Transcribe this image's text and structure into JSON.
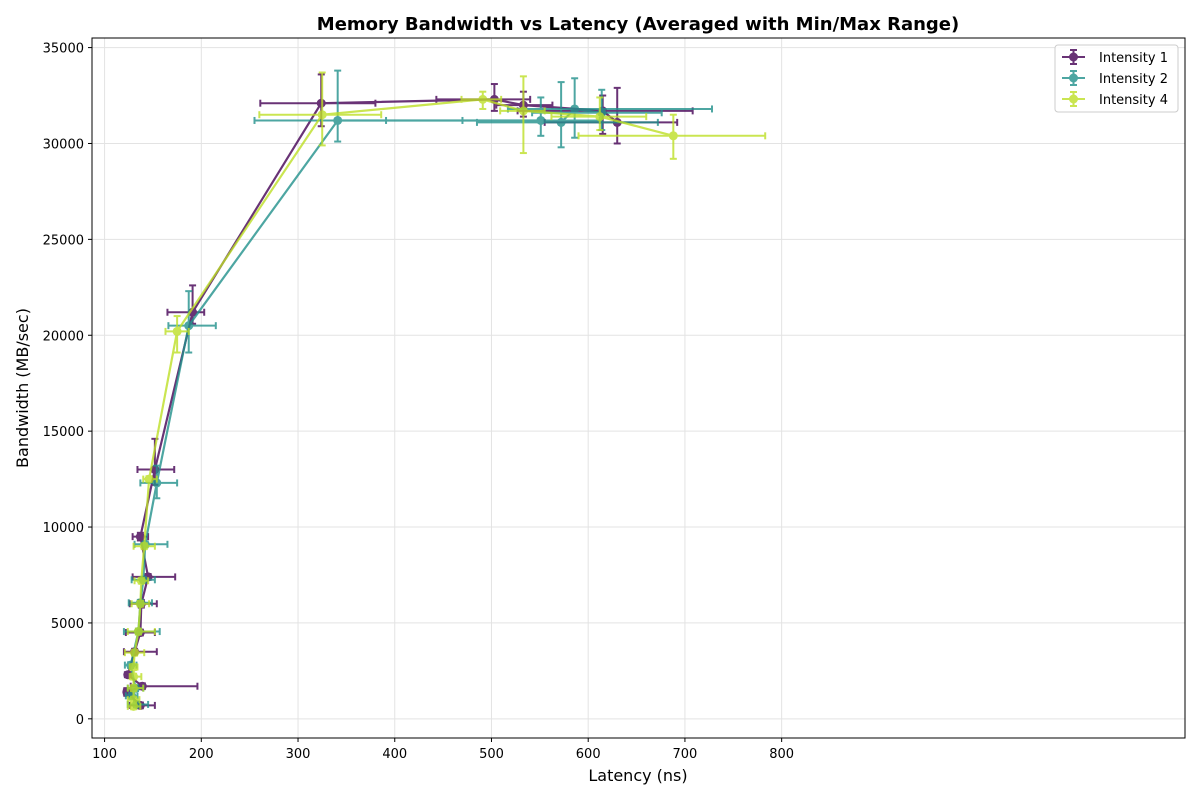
{
  "chart_data": {
    "type": "scatter",
    "title": "Memory Bandwidth vs Latency (Averaged with Min/Max Range)",
    "xlabel": "Latency (ns)",
    "ylabel": "Bandwidth (MB/sec)",
    "xlim": [
      87,
      1217
    ],
    "ylim": [
      -1000,
      35500
    ],
    "xticks": [
      100,
      200,
      300,
      400,
      500,
      600,
      700,
      800
    ],
    "yticks": [
      0,
      5000,
      10000,
      15000,
      20000,
      25000,
      30000,
      35000
    ],
    "grid": true,
    "legend_position": "top-right",
    "error_bars": "min/max range in both x and y",
    "series": [
      {
        "name": "Intensity 1",
        "color": "#440154",
        "points": [
          {
            "x": 137,
            "y": 700,
            "xmin": 126,
            "xmax": 152,
            "ymin": 550,
            "ymax": 850
          },
          {
            "x": 123,
            "y": 1400,
            "xmin": 120,
            "xmax": 128,
            "ymin": 1200,
            "ymax": 1600
          },
          {
            "x": 139,
            "y": 1700,
            "xmin": 127,
            "xmax": 196,
            "ymin": 1550,
            "ymax": 1850
          },
          {
            "x": 124,
            "y": 2300,
            "xmin": 121,
            "xmax": 127,
            "ymin": 2200,
            "ymax": 2400
          },
          {
            "x": 131,
            "y": 3500,
            "xmin": 120,
            "xmax": 154,
            "ymin": 3350,
            "ymax": 3650
          },
          {
            "x": 137,
            "y": 4500,
            "xmin": 122,
            "xmax": 152,
            "ymin": 4350,
            "ymax": 4650
          },
          {
            "x": 138,
            "y": 6000,
            "xmin": 126,
            "xmax": 154,
            "ymin": 5800,
            "ymax": 6200
          },
          {
            "x": 145,
            "y": 7400,
            "xmin": 129,
            "xmax": 173,
            "ymin": 7250,
            "ymax": 7550
          },
          {
            "x": 137,
            "y": 9500,
            "xmin": 129,
            "xmax": 145,
            "ymin": 9300,
            "ymax": 9700
          },
          {
            "x": 152,
            "y": 13000,
            "xmin": 134,
            "xmax": 172,
            "ymin": 12200,
            "ymax": 14600
          },
          {
            "x": 191,
            "y": 21200,
            "xmin": 165,
            "xmax": 203,
            "ymin": 20600,
            "ymax": 22600
          },
          {
            "x": 324,
            "y": 32100,
            "xmin": 261,
            "xmax": 380,
            "ymin": 30900,
            "ymax": 33600
          },
          {
            "x": 503,
            "y": 32300,
            "xmin": 443,
            "xmax": 540,
            "ymin": 31700,
            "ymax": 33100
          },
          {
            "x": 533,
            "y": 32000,
            "xmin": 505,
            "xmax": 563,
            "ymin": 31400,
            "ymax": 32700
          },
          {
            "x": 615,
            "y": 31700,
            "xmin": 527,
            "xmax": 708,
            "ymin": 30500,
            "ymax": 32500
          },
          {
            "x": 630,
            "y": 31100,
            "xmin": 555,
            "xmax": 692,
            "ymin": 30000,
            "ymax": 32900
          }
        ]
      },
      {
        "name": "Intensity 2",
        "color": "#21918c",
        "points": [
          {
            "x": 133,
            "y": 750,
            "xmin": 124,
            "xmax": 145,
            "ymin": 600,
            "ymax": 900
          },
          {
            "x": 128,
            "y": 1200,
            "xmin": 122,
            "xmax": 134,
            "ymin": 1050,
            "ymax": 1350
          },
          {
            "x": 132,
            "y": 1600,
            "xmin": 124,
            "xmax": 140,
            "ymin": 1450,
            "ymax": 1750
          },
          {
            "x": 127,
            "y": 2800,
            "xmin": 121,
            "xmax": 133,
            "ymin": 2650,
            "ymax": 2950
          },
          {
            "x": 135,
            "y": 4550,
            "xmin": 120,
            "xmax": 157,
            "ymin": 4400,
            "ymax": 4700
          },
          {
            "x": 137,
            "y": 6050,
            "xmin": 125,
            "xmax": 149,
            "ymin": 5900,
            "ymax": 6200
          },
          {
            "x": 140,
            "y": 7250,
            "xmin": 128,
            "xmax": 152,
            "ymin": 7100,
            "ymax": 7400
          },
          {
            "x": 142,
            "y": 9100,
            "xmin": 131,
            "xmax": 165,
            "ymin": 8950,
            "ymax": 9250
          },
          {
            "x": 154,
            "y": 12300,
            "xmin": 137,
            "xmax": 175,
            "ymin": 11500,
            "ymax": 13200
          },
          {
            "x": 187,
            "y": 20500,
            "xmin": 166,
            "xmax": 215,
            "ymin": 19100,
            "ymax": 22300
          },
          {
            "x": 341,
            "y": 31200,
            "xmin": 255,
            "xmax": 391,
            "ymin": 30100,
            "ymax": 33800
          },
          {
            "x": 551,
            "y": 31200,
            "xmin": 470,
            "xmax": 612,
            "ymin": 30400,
            "ymax": 32400
          },
          {
            "x": 572,
            "y": 31100,
            "xmin": 485,
            "xmax": 672,
            "ymin": 29800,
            "ymax": 33200
          },
          {
            "x": 586,
            "y": 31800,
            "xmin": 517,
            "xmax": 728,
            "ymin": 30300,
            "ymax": 33400
          },
          {
            "x": 614,
            "y": 31600,
            "xmin": 542,
            "xmax": 676,
            "ymin": 30700,
            "ymax": 32800
          }
        ]
      },
      {
        "name": "Intensity 4",
        "color": "#bddf26",
        "points": [
          {
            "x": 130,
            "y": 650,
            "xmin": 124,
            "xmax": 137,
            "ymin": 500,
            "ymax": 800
          },
          {
            "x": 130,
            "y": 1000,
            "xmin": 124,
            "xmax": 136,
            "ymin": 850,
            "ymax": 1150
          },
          {
            "x": 130,
            "y": 1600,
            "xmin": 124,
            "xmax": 140,
            "ymin": 1450,
            "ymax": 1750
          },
          {
            "x": 130,
            "y": 2200,
            "xmin": 126,
            "xmax": 138,
            "ymin": 2050,
            "ymax": 2350
          },
          {
            "x": 130,
            "y": 2700,
            "xmin": 126,
            "xmax": 134,
            "ymin": 2550,
            "ymax": 2850
          },
          {
            "x": 131,
            "y": 3450,
            "xmin": 121,
            "xmax": 141,
            "ymin": 3300,
            "ymax": 3600
          },
          {
            "x": 135,
            "y": 4550,
            "xmin": 124,
            "xmax": 152,
            "ymin": 4400,
            "ymax": 4700
          },
          {
            "x": 137,
            "y": 6000,
            "xmin": 128,
            "xmax": 146,
            "ymin": 5850,
            "ymax": 6150
          },
          {
            "x": 138,
            "y": 7200,
            "xmin": 131,
            "xmax": 145,
            "ymin": 7050,
            "ymax": 7350
          },
          {
            "x": 141,
            "y": 9000,
            "xmin": 130,
            "xmax": 152,
            "ymin": 8850,
            "ymax": 9150
          },
          {
            "x": 146,
            "y": 12500,
            "xmin": 140,
            "xmax": 154,
            "ymin": 12350,
            "ymax": 12650
          },
          {
            "x": 175,
            "y": 20200,
            "xmin": 163,
            "xmax": 187,
            "ymin": 19100,
            "ymax": 21000
          },
          {
            "x": 325,
            "y": 31500,
            "xmin": 260,
            "xmax": 386,
            "ymin": 29900,
            "ymax": 33700
          },
          {
            "x": 491,
            "y": 32300,
            "xmin": 469,
            "xmax": 510,
            "ymin": 31800,
            "ymax": 32700
          },
          {
            "x": 533,
            "y": 31700,
            "xmin": 509,
            "xmax": 555,
            "ymin": 29500,
            "ymax": 33500
          },
          {
            "x": 612,
            "y": 31400,
            "xmin": 562,
            "xmax": 660,
            "ymin": 30700,
            "ymax": 32400
          },
          {
            "x": 688,
            "y": 30400,
            "xmin": 590,
            "xmax": 783,
            "ymin": 29200,
            "ymax": 31500
          }
        ]
      }
    ]
  }
}
